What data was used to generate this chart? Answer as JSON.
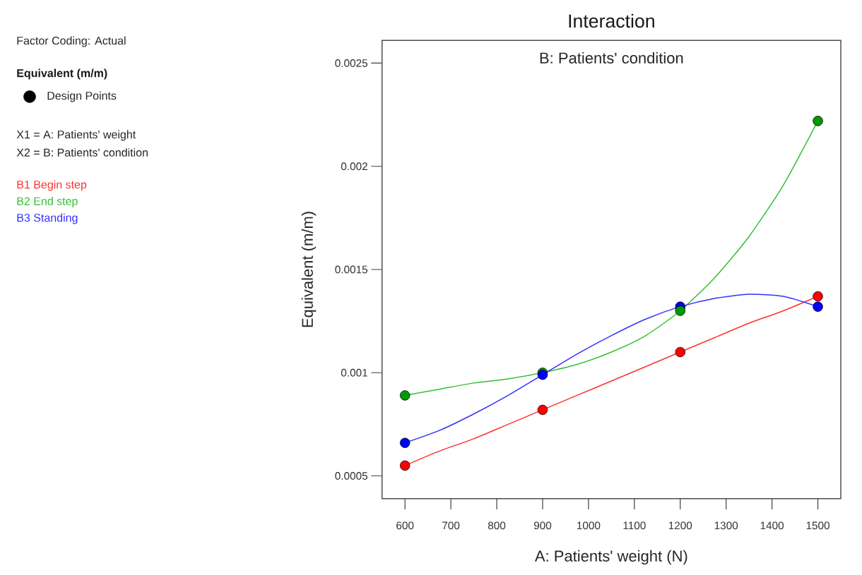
{
  "chart_data": {
    "type": "line",
    "title": "Interaction",
    "subtitle": "B: Patients'  condition",
    "xlabel": "A: Patients'  weight (N)",
    "ylabel": "Equivalent (m/m)",
    "legend_title": "Equivalent (m/m)",
    "legend": "left",
    "annotations": [
      "Factor Coding: Actual",
      "X1 = A: Patients' weight",
      "X2 = B: Patients' condition"
    ],
    "xlim": [
      550,
      1550
    ],
    "xticks": [
      600,
      700,
      800,
      900,
      1000,
      1100,
      1200,
      1300,
      1400,
      1500
    ],
    "ylim": [
      0.00039,
      0.00261
    ],
    "yticks": [
      0.0005,
      0.001,
      0.0015,
      0.002,
      0.0025
    ],
    "series": [
      {
        "name": "B1 Begin step",
        "color": "#ff3030",
        "x": [
          600,
          675,
          750,
          825,
          900,
          975,
          1050,
          1125,
          1200,
          1275,
          1350,
          1425,
          1500
        ],
        "values": [
          0.00055,
          0.00062,
          0.00068,
          0.00075,
          0.00082,
          0.00089,
          0.00096,
          0.00103,
          0.0011,
          0.00117,
          0.00124,
          0.0013,
          0.00137
        ]
      },
      {
        "name": "B2 End step",
        "color": "#30c030",
        "x": [
          600,
          675,
          750,
          825,
          900,
          975,
          1050,
          1125,
          1200,
          1275,
          1350,
          1425,
          1500
        ],
        "values": [
          0.00089,
          0.00092,
          0.00095,
          0.00097,
          0.001,
          0.00104,
          0.0011,
          0.00118,
          0.0013,
          0.00146,
          0.00166,
          0.00191,
          0.00222
        ]
      },
      {
        "name": "B3 Standing",
        "color": "#3030ff",
        "x": [
          600,
          675,
          750,
          825,
          900,
          975,
          1050,
          1125,
          1200,
          1275,
          1350,
          1425,
          1500
        ],
        "values": [
          0.00066,
          0.00072,
          0.0008,
          0.00089,
          0.00099,
          0.00109,
          0.00118,
          0.00126,
          0.00132,
          0.00136,
          0.00138,
          0.00137,
          0.00132
        ]
      },
      {
        "name": "Design Points",
        "type": "scatter",
        "marker": "circle",
        "color": "#000000",
        "x": [
          600,
          900,
          1200,
          1500,
          600,
          900,
          600,
          900,
          1200,
          1200,
          1500,
          1500
        ],
        "values": [
          0.00055,
          0.00082,
          0.0011,
          0.00137,
          0.00089,
          0.001,
          0.00066,
          0.00099,
          0.00132,
          0.0013,
          0.00222,
          0.00132
        ],
        "colors": [
          "#ff0000",
          "#ff0000",
          "#ff0000",
          "#ff0000",
          "#009900",
          "#009900",
          "#0000ff",
          "#0000ff",
          "#0000ff",
          "#009900",
          "#009900",
          "#0000ff"
        ]
      }
    ]
  }
}
